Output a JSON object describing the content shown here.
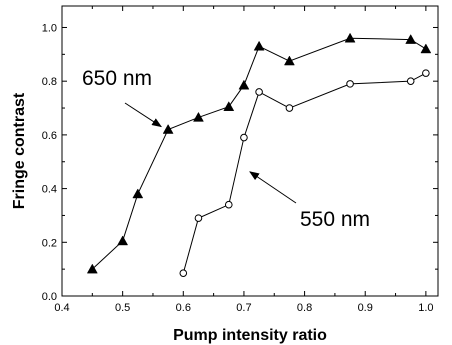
{
  "chart_data": {
    "type": "line",
    "xlabel": "Pump intensity ratio",
    "ylabel": "Fringe contrast",
    "xlim": [
      0.4,
      1.02
    ],
    "ylim": [
      0.0,
      1.08
    ],
    "xticks": [
      0.4,
      0.5,
      0.6,
      0.7,
      0.8,
      0.9,
      1.0
    ],
    "xtick_labels": [
      "0.4",
      "0.5",
      "0.6",
      "0.7",
      "0.8",
      "0.9",
      "1.0"
    ],
    "yticks": [
      0.0,
      0.2,
      0.4,
      0.6,
      0.8,
      1.0
    ],
    "ytick_labels": [
      "0.0",
      "0.2",
      "0.4",
      "0.6",
      "0.8",
      "1.0"
    ],
    "grid": false,
    "series": [
      {
        "name": "650 nm",
        "marker": "filled-triangle",
        "color": "#000000",
        "x": [
          0.45,
          0.5,
          0.525,
          0.575,
          0.625,
          0.675,
          0.7,
          0.725,
          0.775,
          0.875,
          0.975,
          1.0
        ],
        "y": [
          0.1,
          0.205,
          0.38,
          0.62,
          0.665,
          0.705,
          0.785,
          0.93,
          0.875,
          0.96,
          0.955,
          0.92
        ]
      },
      {
        "name": "550 nm",
        "marker": "open-circle",
        "color": "#000000",
        "x": [
          0.6,
          0.625,
          0.675,
          0.7,
          0.725,
          0.775,
          0.875,
          0.975,
          1.0
        ],
        "y": [
          0.085,
          0.29,
          0.34,
          0.59,
          0.76,
          0.7,
          0.79,
          0.8,
          0.83
        ]
      }
    ],
    "annotations": [
      {
        "text": "650 nm",
        "series": "650 nm",
        "arrow_to": [
          0.575,
          0.62
        ]
      },
      {
        "text": "550 nm",
        "series": "550 nm",
        "arrow_to": [
          0.7,
          0.47
        ]
      }
    ]
  }
}
